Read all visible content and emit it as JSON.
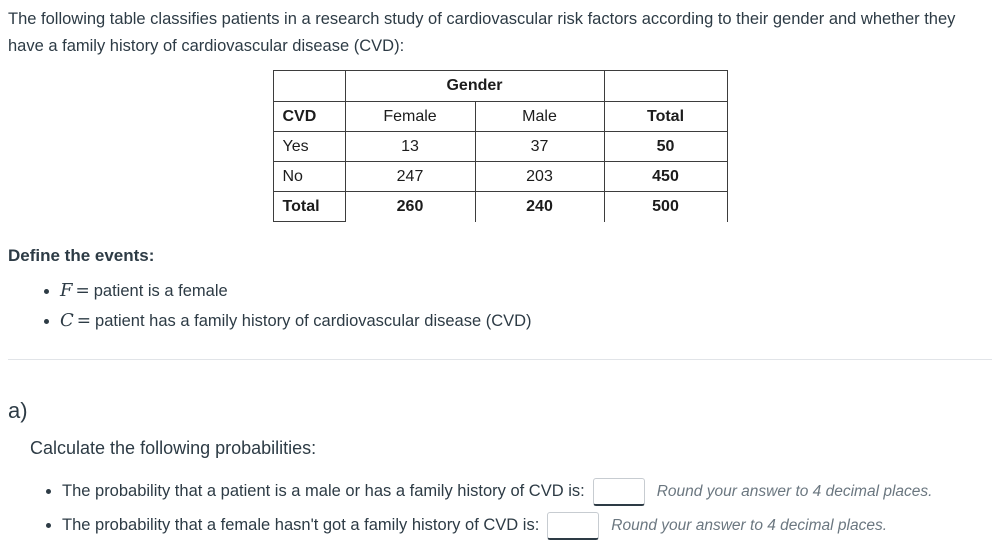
{
  "colors": {
    "text": "#2d3b45",
    "hint_gray": "#6b7780",
    "table_border": "#3d3d3d",
    "input_border": "#c7ccd1",
    "input_underline": "#2d3b45",
    "divider": "#e1e4e8"
  },
  "intro": {
    "text": "The following table classifies patients in a research study of cardiovascular risk factors according to their gender and whether they have a family history of cardiovascular disease (CVD):"
  },
  "table": {
    "gender_header": "Gender",
    "col_headers": [
      "CVD",
      "Female",
      "Male",
      "Total"
    ],
    "rows": [
      {
        "label": "Yes",
        "female": "13",
        "male": "37",
        "total": "50"
      },
      {
        "label": "No",
        "female": "247",
        "male": "203",
        "total": "450"
      },
      {
        "label": "Total",
        "female": "260",
        "male": "240",
        "total": "500"
      }
    ]
  },
  "events": {
    "heading": "Define the events:",
    "items": [
      {
        "symbol": "F",
        "eq": "=",
        "text": "patient is a female"
      },
      {
        "symbol": "C",
        "eq": "=",
        "text": "patient has a family history of cardiovascular disease (CVD)"
      }
    ]
  },
  "part_a": {
    "label": "a)",
    "instruction": "Calculate the following probabilities:",
    "questions": [
      {
        "prompt": "The probability that a patient is a male or has a family history of CVD is:",
        "value": "",
        "hint": "Round your answer to 4 decimal places."
      },
      {
        "prompt": "The probability that a female hasn't got a family history of CVD is:",
        "value": "",
        "hint": "Round your answer to 4 decimal places."
      }
    ]
  }
}
